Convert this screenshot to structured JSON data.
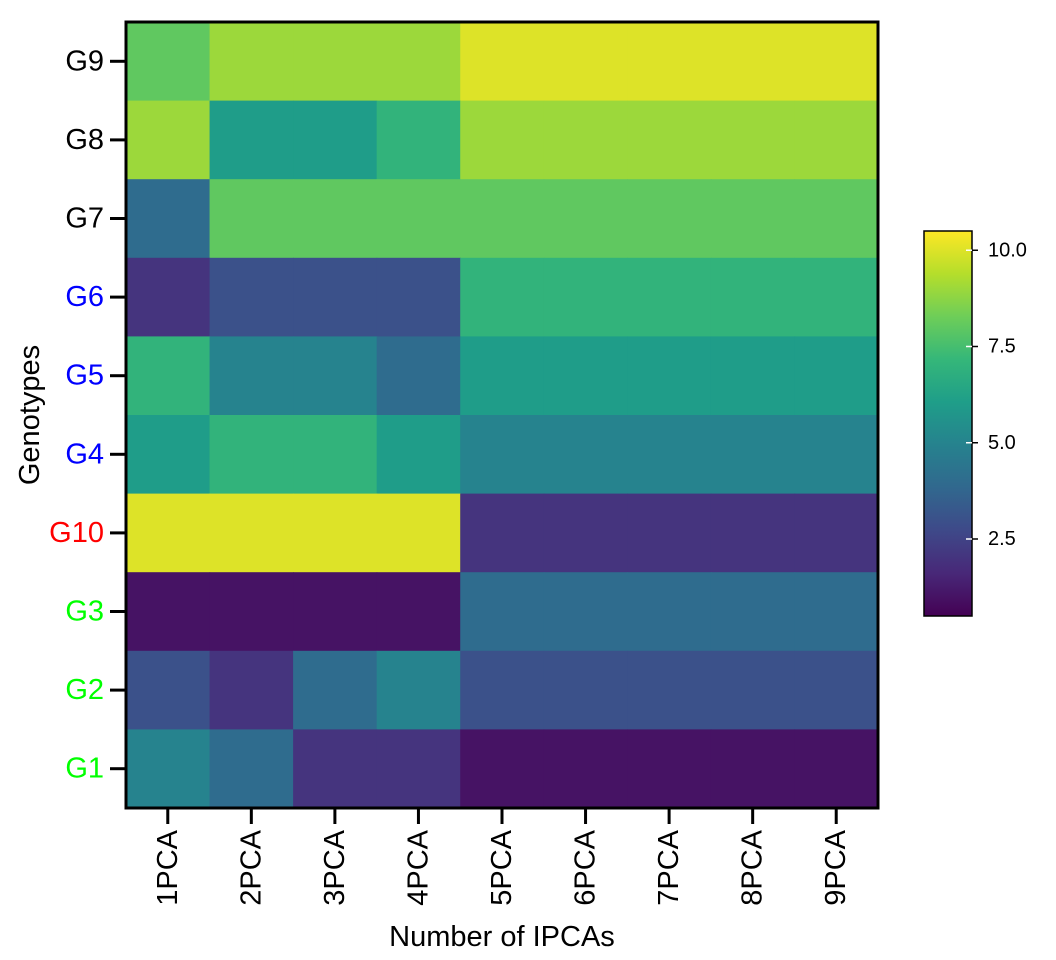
{
  "chart_data": {
    "type": "heatmap",
    "title": "",
    "xlabel": "Number of IPCAs",
    "ylabel": "Genotypes",
    "x_categories": [
      "1PCA",
      "2PCA",
      "3PCA",
      "4PCA",
      "5PCA",
      "6PCA",
      "7PCA",
      "8PCA",
      "9PCA"
    ],
    "y_categories": [
      "G9",
      "G8",
      "G7",
      "G6",
      "G5",
      "G4",
      "G10",
      "G3",
      "G2",
      "G1"
    ],
    "y_label_colors": {
      "G9": "#000000",
      "G8": "#000000",
      "G7": "#000000",
      "G6": "#0000ff",
      "G5": "#0000ff",
      "G4": "#0000ff",
      "G10": "#ff0000",
      "G3": "#00ff00",
      "G2": "#00ff00",
      "G1": "#00ff00"
    },
    "values": [
      [
        8,
        9,
        9,
        9,
        10,
        10,
        10,
        10,
        10
      ],
      [
        9,
        6,
        6,
        7,
        9,
        9,
        9,
        9,
        9
      ],
      [
        4,
        8,
        8,
        8,
        8,
        8,
        8,
        8,
        8
      ],
      [
        2,
        3,
        3,
        3,
        7,
        7,
        7,
        7,
        7
      ],
      [
        7,
        5,
        5,
        4,
        6,
        6,
        6,
        6,
        6
      ],
      [
        6,
        7,
        7,
        6,
        5,
        5,
        5,
        5,
        5
      ],
      [
        10,
        10,
        10,
        10,
        2,
        2,
        2,
        2,
        2
      ],
      [
        1,
        1,
        1,
        1,
        4,
        4,
        4,
        4,
        4
      ],
      [
        3,
        2,
        4,
        5,
        3,
        3,
        3,
        3,
        3
      ],
      [
        5,
        4,
        2,
        2,
        1,
        1,
        1,
        1,
        1
      ]
    ],
    "colormap": "viridis",
    "colorbar": {
      "range": [
        0.5,
        10.5
      ],
      "ticks": [
        2.5,
        5.0,
        7.5,
        10.0
      ],
      "tick_labels": [
        "2.5",
        "5.0",
        "7.5",
        "10.0"
      ]
    }
  }
}
